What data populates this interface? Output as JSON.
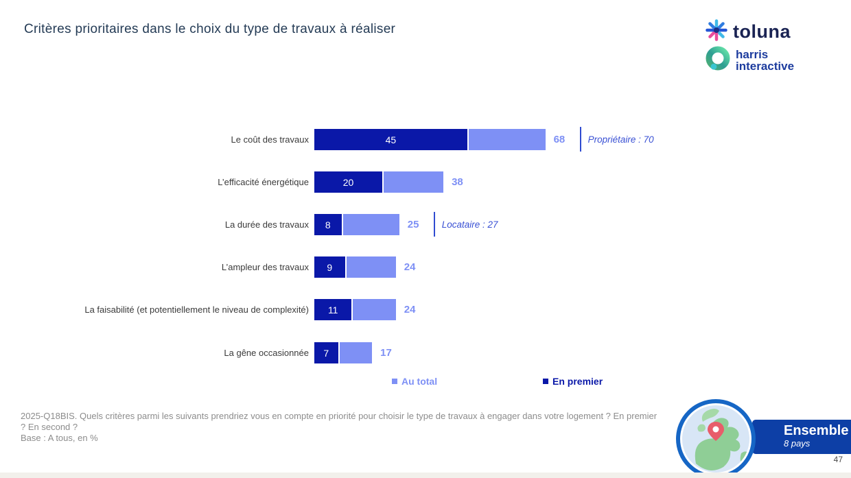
{
  "header": {
    "title": "Critères prioritaires dans le choix du type de travaux à réaliser",
    "logo": {
      "toluna": "toluna",
      "harris_line1": "harris",
      "harris_line2": "interactive"
    }
  },
  "chart_data": {
    "type": "bar",
    "orientation": "horizontal",
    "unit": "%",
    "categories": [
      "Le coût des travaux",
      "L’efficacité énergétique",
      "La durée des travaux",
      "L’ampleur des travaux",
      "La faisabilité (et potentiellement le niveau de complexité)",
      "La gêne occasionnée"
    ],
    "series": [
      {
        "name": "En premier",
        "color": "#0a18a8",
        "values": [
          45,
          20,
          8,
          9,
          11,
          7
        ]
      },
      {
        "name": "Au total",
        "color": "#7e90f5",
        "values": [
          68,
          38,
          25,
          24,
          24,
          17
        ]
      }
    ],
    "annotations": [
      {
        "row": 0,
        "text": "Propriétaire : 70"
      },
      {
        "row": 2,
        "text": "Locataire : 27"
      }
    ],
    "legend": [
      {
        "label": "Au total",
        "color": "#7e90f5"
      },
      {
        "label": "En premier",
        "color": "#0a18a8"
      }
    ],
    "xlim": [
      0,
      100
    ],
    "grid": false
  },
  "footer": {
    "question": "2025-Q18BIS. Quels critères parmi les suivants prendriez vous en compte en priorité pour choisir le type de travaux à engager dans votre logement ? En premier ? En second ?",
    "base": "Base : A tous, en %"
  },
  "scope": {
    "title": "Ensemble",
    "subtitle": "8 pays",
    "page_number": "47"
  }
}
